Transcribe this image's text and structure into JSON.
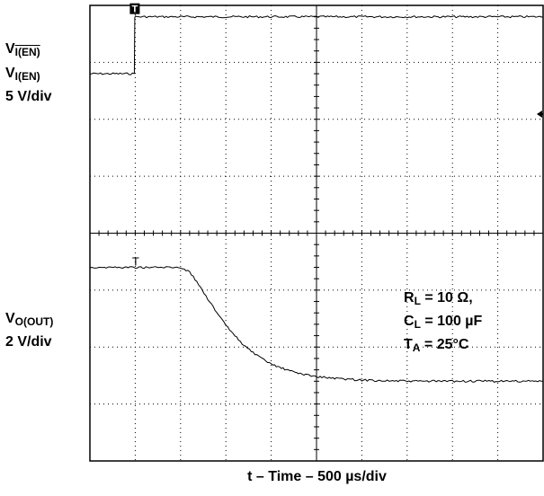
{
  "chart_data": {
    "type": "line",
    "title": "",
    "xlabel": "t – Time – 500 µs/div",
    "grid": true,
    "divisions": {
      "x": 10,
      "y": 8
    },
    "channels": [
      {
        "name": "VI(EN)",
        "label_lines": [
          "V",
          "I(EN)",
          "V",
          "I(EN)",
          "5 V/div"
        ],
        "label_main": "V",
        "label_sub_overline": "I(EN)",
        "label_main2": "V",
        "label_sub2": "I(EN)",
        "scale": "5 V/div",
        "marker_glyph": "T",
        "units": "divisions from top",
        "x": [
          0,
          0.98,
          0.99,
          1.0,
          1.05,
          2,
          3,
          4,
          5,
          6,
          7,
          8,
          9,
          10
        ],
        "y": [
          1.2,
          1.2,
          0.2,
          0.2,
          0.2,
          0.2,
          0.2,
          0.2,
          0.2,
          0.2,
          0.2,
          0.2,
          0.2,
          0.2
        ]
      },
      {
        "name": "VO(OUT)",
        "label_main": "V",
        "label_sub": "O(OUT)",
        "scale": "2 V/div",
        "marker_glyph": "T",
        "units": "divisions from top",
        "x": [
          0,
          1,
          2,
          2.2,
          2.4,
          2.6,
          2.8,
          3.0,
          3.2,
          3.4,
          3.6,
          3.8,
          4.0,
          4.3,
          4.6,
          5.0,
          5.4,
          6.0,
          7.0,
          8.0,
          9.0,
          10.0
        ],
        "y": [
          4.6,
          4.6,
          4.6,
          4.68,
          4.9,
          5.15,
          5.4,
          5.62,
          5.8,
          5.97,
          6.1,
          6.21,
          6.3,
          6.39,
          6.46,
          6.52,
          6.55,
          6.58,
          6.6,
          6.6,
          6.6,
          6.6
        ]
      }
    ],
    "annotations": [
      {
        "main": "R",
        "sub": "L",
        "rest": " = 10 Ω,"
      },
      {
        "main": "C",
        "sub": "L",
        "rest": " = 100 µF"
      },
      {
        "main": "T",
        "sub": "A",
        "rest": " = 25°C"
      }
    ]
  }
}
